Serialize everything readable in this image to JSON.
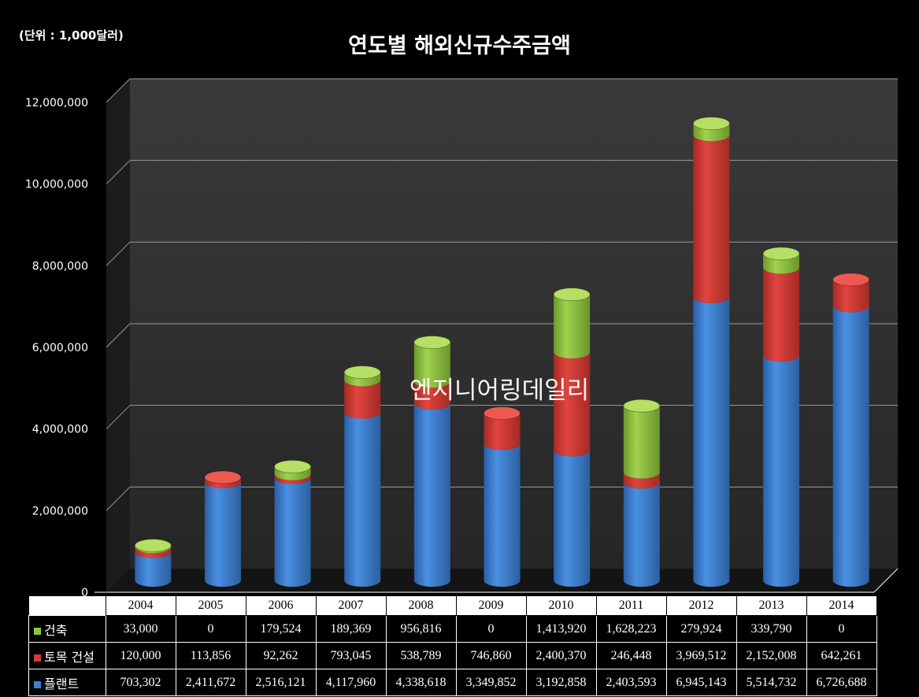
{
  "unit_note": "(단위 : 1,000달러)",
  "watermark": "엔지니어링데일리",
  "colors": {
    "plant": "#3a7fd4",
    "civil": "#d73b35",
    "building": "#8cc63f",
    "background": "#000000",
    "plot_wall": "#2b2b2b",
    "gridline": "#9a9a9a"
  },
  "chart_data": {
    "type": "bar",
    "stacked": true,
    "title": "연도별 해외신규수주금액",
    "xlabel": "",
    "ylabel": "",
    "ylim": [
      0,
      12000000
    ],
    "y_ticks": [
      0,
      2000000,
      4000000,
      6000000,
      8000000,
      10000000,
      12000000
    ],
    "y_tick_labels": [
      "0",
      "2,000,000",
      "4,000,000",
      "6,000,000",
      "8,000,000",
      "10,000,000",
      "12,000,000"
    ],
    "grid": true,
    "legend_placement": "data-table-left",
    "categories": [
      "2004",
      "2005",
      "2006",
      "2007",
      "2008",
      "2009",
      "2010",
      "2011",
      "2012",
      "2013",
      "2014"
    ],
    "series": [
      {
        "name": "플랜트",
        "color": "#3a7fd4",
        "values": [
          703302,
          2411672,
          2516121,
          4117960,
          4338618,
          3349852,
          3192858,
          2403593,
          6945143,
          5514732,
          6726688
        ],
        "labels": [
          "703,302",
          "2,411,672",
          "2,516,121",
          "4,117,960",
          "4,338,618",
          "3,349,852",
          "3,192,858",
          "2,403,593",
          "6,945,143",
          "5,514,732",
          "6,726,688"
        ]
      },
      {
        "name": "토목 건설",
        "color": "#d73b35",
        "values": [
          120000,
          113856,
          92262,
          793045,
          538789,
          746860,
          2400370,
          246448,
          3969512,
          2152008,
          642261
        ],
        "labels": [
          "120,000",
          "113,856",
          "92,262",
          "793,045",
          "538,789",
          "746,860",
          "2,400,370",
          "246,448",
          "3,969,512",
          "2,152,008",
          "642,261"
        ]
      },
      {
        "name": "건축",
        "color": "#8cc63f",
        "values": [
          33000,
          0,
          179524,
          189369,
          956816,
          0,
          1413920,
          1628223,
          279924,
          339790,
          0
        ],
        "labels": [
          "33,000",
          "0",
          "179,524",
          "189,369",
          "956,816",
          "0",
          "1,413,920",
          "1,628,223",
          "279,924",
          "339,790",
          "0"
        ]
      }
    ]
  }
}
